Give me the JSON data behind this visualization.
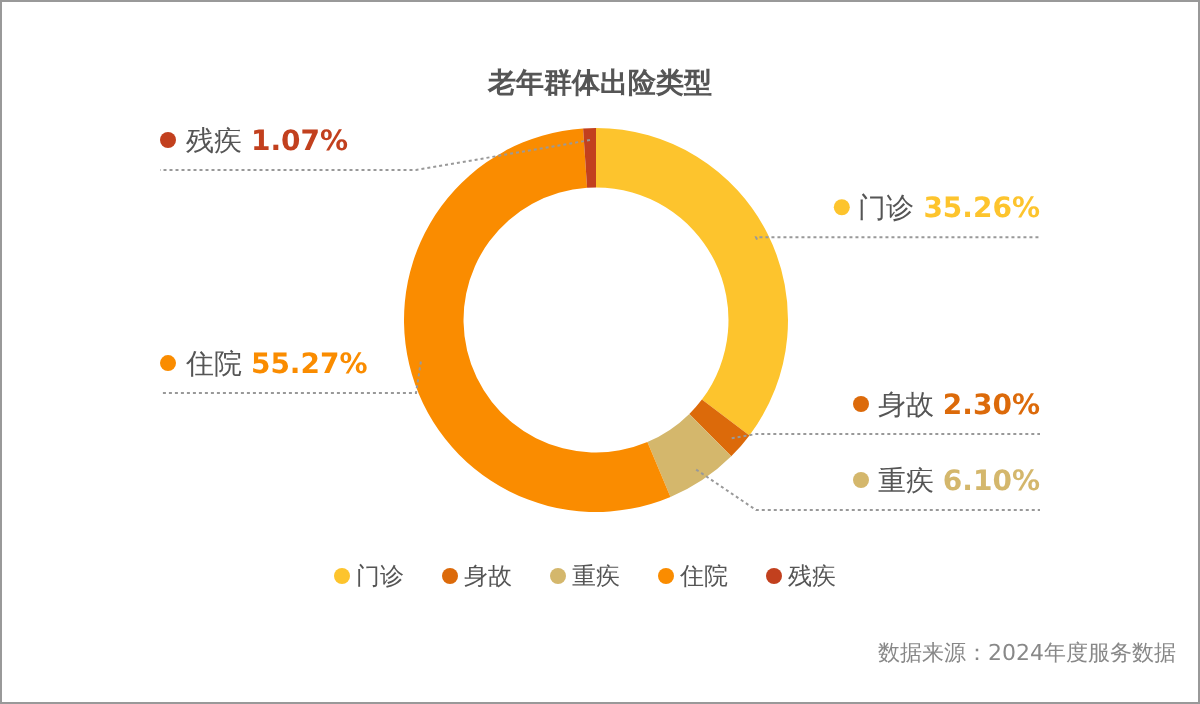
{
  "chart_data": {
    "type": "donut",
    "title": "老年群体出险类型",
    "categories": [
      "门诊",
      "身故",
      "重疾",
      "住院",
      "残疾"
    ],
    "values": [
      35.26,
      2.3,
      6.1,
      55.27,
      1.07
    ],
    "value_labels": [
      "35.26%",
      "2.30%",
      "6.10%",
      "55.27%",
      "1.07%"
    ],
    "colors": [
      "#fdc42d",
      "#dc6a0a",
      "#d4b76c",
      "#fa8c00",
      "#c2401e"
    ],
    "legend": "bottom",
    "annotations": [
      "数据来源：2024年度服务数据"
    ]
  }
}
